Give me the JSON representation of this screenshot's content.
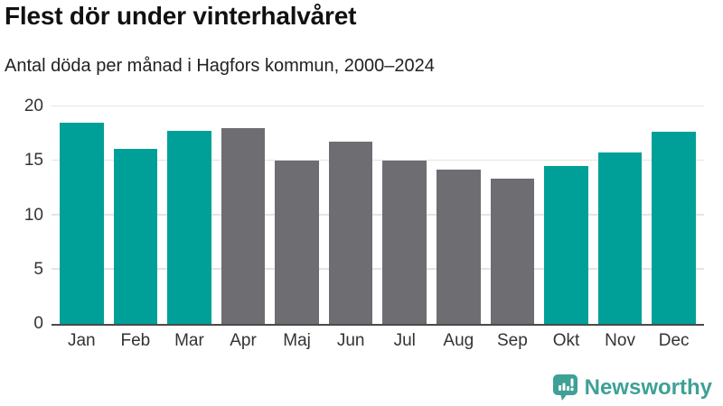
{
  "title": "Flest dör under vinterhalvåret",
  "subtitle": "Antal döda per månad i Hagfors kommun, 2000–2024",
  "chart_data": {
    "type": "bar",
    "categories": [
      "Jan",
      "Feb",
      "Mar",
      "Apr",
      "Maj",
      "Jun",
      "Jul",
      "Aug",
      "Sep",
      "Okt",
      "Nov",
      "Dec"
    ],
    "values": [
      18.5,
      16.1,
      17.8,
      18.0,
      15.0,
      16.8,
      15.0,
      14.2,
      13.4,
      14.5,
      15.8,
      17.7
    ],
    "bar_colors": [
      "highlight",
      "highlight",
      "highlight",
      "base",
      "base",
      "base",
      "base",
      "base",
      "base",
      "highlight",
      "highlight",
      "highlight"
    ],
    "title": "Flest dör under vinterhalvåret",
    "xlabel": "",
    "ylabel": "",
    "ylim": [
      0,
      20
    ],
    "yticks": [
      0,
      5,
      10,
      15,
      20
    ],
    "grid": true,
    "legend": "none",
    "highlight_color": "#00a099",
    "base_color": "#6e6d71",
    "gridline_color": "#e4e4e4",
    "axis_color": "#4a4a4a"
  },
  "branding": {
    "logo_text": "Newsworthy",
    "logo_color": "#3fa096",
    "logo_icon": "bar-chart-speech-bubble-icon"
  }
}
